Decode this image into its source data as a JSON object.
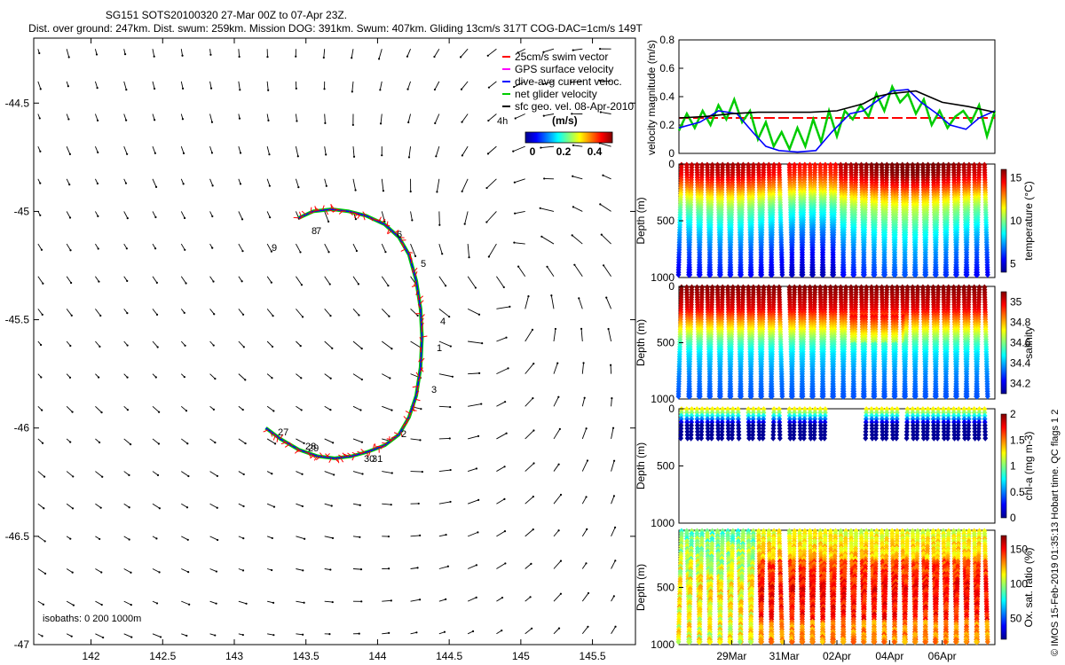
{
  "figure": {
    "title_line1": "SG151 SOTS20100320 27-Mar 00Z to 07-Apr 23Z.",
    "title_line2": "Dist. over ground: 247km. Dist. swum: 259km. Mission DOG: 391km. Swum: 407km. Gliding 13cm/s 317T COG-DAC=1cm/s 149T",
    "watermark": "© IMOS 15-Feb-2019 01:35:13 Hobart time. QC flags 1  2"
  },
  "map": {
    "legend": [
      {
        "label": "25cm/s swim vector",
        "color": "#ff0000",
        "marker": "line"
      },
      {
        "label": "GPS surface velocity",
        "color": "#ff00ff",
        "marker": "line"
      },
      {
        "label": "dive-avg current veloc.",
        "color": "#0000ff",
        "marker": "line"
      },
      {
        "label": "net glider velocity",
        "color": "#00cc00",
        "marker": "line"
      },
      {
        "label": "sfc geo. vel. 08-Apr-2010",
        "color": "#000000",
        "marker": "line"
      }
    ],
    "legend_4h": "4h",
    "colorbar_unit": "(m/s)",
    "colorbar_ticks": [
      "0",
      "0.2",
      "0.4"
    ],
    "isobaths": "isobaths: 0   200  1000m",
    "track_labels": [
      "9",
      "8",
      "7",
      "6",
      "5",
      "4",
      "1",
      "3",
      "2",
      "30",
      "31",
      "29",
      "28",
      "27"
    ]
  },
  "chart_data": [
    {
      "type": "scatter",
      "title": "",
      "xlabel": "",
      "ylabel": "",
      "xlim": [
        141.6,
        145.8
      ],
      "ylim": [
        -47.0,
        -44.2
      ],
      "x_ticks": [
        "142",
        "142.5",
        "143",
        "143.5",
        "144",
        "144.5",
        "145",
        "145.5"
      ],
      "y_ticks": [
        "-44.5",
        "-45",
        "-45.5",
        "-46",
        "-46.5",
        "-47"
      ],
      "series": [
        {
          "name": "net glider velocity",
          "note": "glider track",
          "x": [
            143.45,
            143.55,
            143.68,
            143.8,
            143.92,
            144.05,
            144.15,
            144.22,
            144.27,
            144.3,
            144.31,
            144.3,
            144.27,
            144.22,
            144.15,
            144.05,
            143.93,
            143.82,
            143.7,
            143.58,
            143.45,
            143.32,
            143.22
          ],
          "y": [
            -45.03,
            -45.0,
            -44.99,
            -45.0,
            -45.02,
            -45.06,
            -45.12,
            -45.2,
            -45.32,
            -45.45,
            -45.58,
            -45.72,
            -45.85,
            -45.95,
            -46.03,
            -46.08,
            -46.11,
            -46.13,
            -46.14,
            -46.13,
            -46.1,
            -46.05,
            -46.0
          ]
        }
      ]
    },
    {
      "type": "line",
      "ylabel": "velocity magnitude (m/s)",
      "ylim": [
        0,
        0.8
      ],
      "y_ticks": [
        "0",
        "0.2",
        "0.4",
        "0.6",
        "0.8"
      ],
      "x_domain": [
        0,
        12
      ],
      "series": [
        {
          "name": "sfc geo. vel.",
          "color": "#000000",
          "x": [
            0,
            1,
            2,
            3,
            4,
            5,
            6,
            7,
            7.5,
            8,
            9,
            10,
            11,
            12
          ],
          "y": [
            0.25,
            0.26,
            0.28,
            0.29,
            0.29,
            0.29,
            0.3,
            0.35,
            0.4,
            0.42,
            0.44,
            0.36,
            0.33,
            0.29
          ]
        },
        {
          "name": "dive-avg current veloc.",
          "color": "#0000ff",
          "x": [
            0,
            0.8,
            1.5,
            2.2,
            2.8,
            3.3,
            3.8,
            4.5,
            5.2,
            5.8,
            6.5,
            7.0,
            7.6,
            8.1,
            8.7,
            9.2,
            9.8,
            10.3,
            10.9,
            11.4,
            12
          ],
          "y": [
            0.18,
            0.22,
            0.3,
            0.28,
            0.15,
            0.05,
            0.02,
            0.01,
            0.02,
            0.15,
            0.28,
            0.3,
            0.38,
            0.44,
            0.45,
            0.36,
            0.28,
            0.2,
            0.17,
            0.25,
            0.3
          ]
        },
        {
          "name": "net glider velocity",
          "color": "#00cc00",
          "x": [
            0,
            0.3,
            0.6,
            0.9,
            1.2,
            1.5,
            1.8,
            2.1,
            2.4,
            2.7,
            3.0,
            3.3,
            3.6,
            3.9,
            4.2,
            4.5,
            4.8,
            5.1,
            5.4,
            5.7,
            6.0,
            6.3,
            6.6,
            6.9,
            7.2,
            7.5,
            7.8,
            8.1,
            8.4,
            8.7,
            9.0,
            9.3,
            9.6,
            9.9,
            10.2,
            10.5,
            10.8,
            11.1,
            11.4,
            11.7,
            12
          ],
          "y": [
            0.16,
            0.28,
            0.18,
            0.3,
            0.2,
            0.34,
            0.24,
            0.38,
            0.22,
            0.3,
            0.1,
            0.22,
            0.05,
            0.15,
            0.03,
            0.18,
            0.05,
            0.24,
            0.08,
            0.3,
            0.12,
            0.3,
            0.24,
            0.34,
            0.26,
            0.42,
            0.3,
            0.47,
            0.36,
            0.42,
            0.28,
            0.38,
            0.2,
            0.3,
            0.18,
            0.26,
            0.3,
            0.22,
            0.34,
            0.12,
            0.3
          ]
        },
        {
          "name": "25cm/s swim vector",
          "color": "#ff0000",
          "x": [
            0,
            12
          ],
          "y": [
            0.25,
            0.25
          ]
        }
      ]
    },
    {
      "type": "heatmap",
      "variable": "temperature",
      "ylabel": "Depth (m)",
      "colorbar_label": "temperature (°C)",
      "ylim": [
        0,
        1000
      ],
      "y_ticks": [
        "0",
        "500",
        "1000"
      ],
      "colorbar_ticks": [
        "5",
        "10",
        "15"
      ],
      "crange": [
        4,
        16
      ],
      "profile": {
        "depth": [
          0,
          100,
          200,
          300,
          400,
          600,
          800,
          1000
        ],
        "value": [
          15,
          14.5,
          13,
          11,
          9.5,
          7.5,
          6,
          5
        ]
      }
    },
    {
      "type": "heatmap",
      "variable": "salinity",
      "ylabel": "Depth (m)",
      "colorbar_label": "salinity",
      "ylim": [
        0,
        1000
      ],
      "y_ticks": [
        "0",
        "500",
        "1000"
      ],
      "colorbar_ticks": [
        "34.2",
        "34.4",
        "34.6",
        "34.8",
        "35"
      ],
      "crange": [
        34.1,
        35.1
      ],
      "profile": {
        "depth": [
          0,
          100,
          200,
          300,
          400,
          500,
          600,
          800,
          1000
        ],
        "value": [
          35.1,
          35.05,
          35.0,
          34.85,
          34.7,
          34.55,
          34.45,
          34.35,
          34.3
        ]
      }
    },
    {
      "type": "heatmap",
      "variable": "chl-a",
      "ylabel": "Depth (m)",
      "colorbar_label": "chl-a (mg m-3)",
      "ylim": [
        0,
        1000
      ],
      "y_ticks": [
        "0",
        "500",
        "1000"
      ],
      "colorbar_ticks": [
        "0",
        "0.5",
        "1",
        "1.5",
        "2"
      ],
      "crange": [
        0,
        2
      ],
      "profile": {
        "depth": [
          0,
          40,
          80,
          120,
          160,
          200
        ],
        "value": [
          1.3,
          1.0,
          0.6,
          0.2,
          0.05,
          0.02
        ]
      }
    },
    {
      "type": "heatmap",
      "variable": "oxygen",
      "ylabel": "Depth (m)",
      "colorbar_label": "Ox. sat. ratio (%)",
      "ylim": [
        0,
        1000
      ],
      "y_ticks": [
        "500",
        "1000"
      ],
      "colorbar_ticks": [
        "50",
        "100",
        "150"
      ],
      "crange": [
        20,
        170
      ],
      "profile": {
        "depth": [
          0,
          200,
          500,
          1000
        ],
        "value": [
          100,
          110,
          125,
          120
        ]
      }
    }
  ],
  "time_axis": {
    "labels": [
      "29Mar",
      "31Mar",
      "02Apr",
      "04Apr",
      "06Apr"
    ],
    "positions_days": [
      2,
      4,
      6,
      8,
      10
    ]
  }
}
